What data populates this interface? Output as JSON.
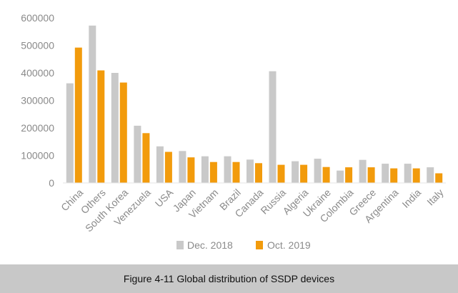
{
  "chart_data": {
    "type": "bar",
    "categories": [
      "China",
      "Others",
      "South Korea",
      "Venezuela",
      "USA",
      "Japan",
      "Vietnam",
      "Brazil",
      "Canada",
      "Russia",
      "Algeria",
      "Ukraine",
      "Colombia",
      "Greece",
      "Argentina",
      "India",
      "Italy"
    ],
    "series": [
      {
        "name": "Dec. 2018",
        "color": "#c9c9c9",
        "values": [
          362000,
          572000,
          400000,
          208000,
          133000,
          116000,
          97000,
          97000,
          85000,
          406000,
          79000,
          88000,
          45000,
          84000,
          70000,
          70000,
          57000
        ]
      },
      {
        "name": "Oct. 2019",
        "color": "#f29b0c",
        "values": [
          492000,
          409000,
          365000,
          181000,
          113000,
          93000,
          76000,
          76000,
          72000,
          66000,
          66000,
          58000,
          57000,
          57000,
          53000,
          53000,
          35000
        ]
      }
    ],
    "yticks": [
      "0",
      "100000",
      "200000",
      "300000",
      "400000",
      "500000",
      "600000"
    ],
    "ylim": [
      0,
      600000
    ],
    "grid": false,
    "legend_position": "bottom-center",
    "title": "",
    "xlabel": "",
    "ylabel": ""
  },
  "caption": "Figure 4-11 Global distribution of SSDP devices"
}
